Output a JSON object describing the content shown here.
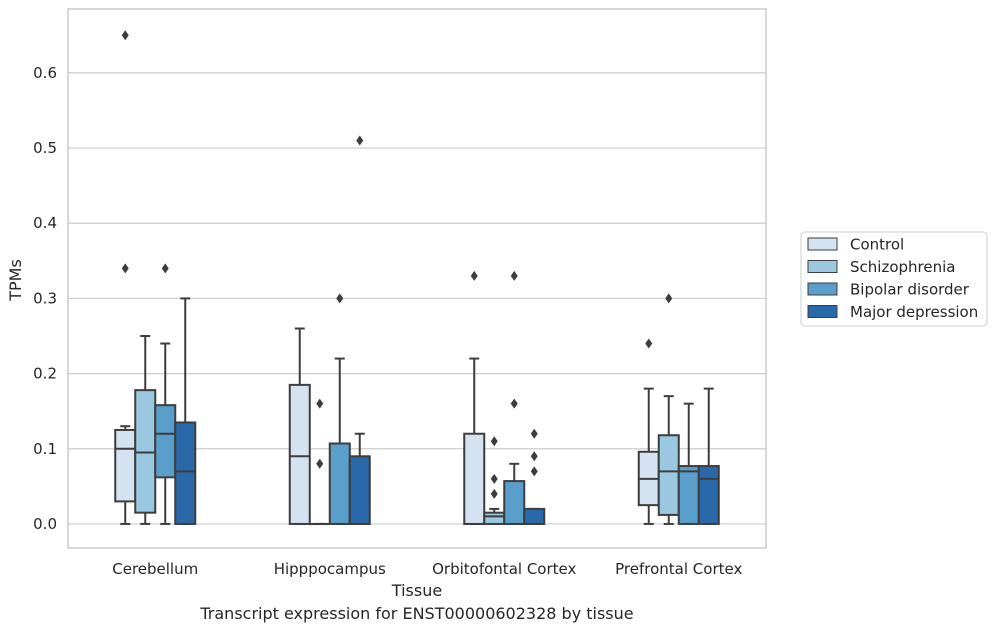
{
  "caption": "Transcript expression for ENST00000602328 by tissue",
  "chart_data": {
    "type": "box",
    "xlabel": "Tissue",
    "ylabel": "TPMs",
    "ylim": [
      -0.032,
      0.685
    ],
    "yticks": [
      0.0,
      0.1,
      0.2,
      0.3,
      0.4,
      0.5,
      0.6
    ],
    "ytick_labels": [
      "0.0",
      "0.1",
      "0.2",
      "0.3",
      "0.4",
      "0.5",
      "0.6"
    ],
    "grid": "horizontal",
    "legend_position": "right",
    "categories": [
      "Cerebellum",
      "Hipppocampus",
      "Orbitofontal Cortex",
      "Prefrontal Cortex"
    ],
    "series": [
      {
        "name": "Control",
        "color": "#d3e3f1",
        "boxes": [
          {
            "whislo": 0.0,
            "q1": 0.03,
            "med": 0.1,
            "q3": 0.125,
            "whishi": 0.13,
            "fliers": [
              0.34,
              0.65
            ]
          },
          {
            "whislo": 0.0,
            "q1": 0.0,
            "med": 0.09,
            "q3": 0.185,
            "whishi": 0.26,
            "fliers": []
          },
          {
            "whislo": 0.0,
            "q1": 0.0,
            "med": 0.0,
            "q3": 0.12,
            "whishi": 0.22,
            "fliers": [
              0.33
            ]
          },
          {
            "whislo": 0.0,
            "q1": 0.025,
            "med": 0.06,
            "q3": 0.096,
            "whishi": 0.18,
            "fliers": [
              0.24
            ]
          }
        ]
      },
      {
        "name": "Schizophrenia",
        "color": "#9ac8e0",
        "boxes": [
          {
            "whislo": 0.0,
            "q1": 0.015,
            "med": 0.095,
            "q3": 0.178,
            "whishi": 0.25,
            "fliers": []
          },
          {
            "whislo": 0.0,
            "q1": 0.0,
            "med": 0.0,
            "q3": 0.0,
            "whishi": 0.0,
            "fliers": [
              0.08,
              0.16
            ]
          },
          {
            "whislo": 0.0,
            "q1": 0.0,
            "med": 0.01,
            "q3": 0.015,
            "whishi": 0.02,
            "fliers": [
              0.04,
              0.06,
              0.11
            ]
          },
          {
            "whislo": 0.0,
            "q1": 0.012,
            "med": 0.07,
            "q3": 0.118,
            "whishi": 0.17,
            "fliers": [
              0.3
            ]
          }
        ]
      },
      {
        "name": "Bipolar disorder",
        "color": "#5a9fcb",
        "boxes": [
          {
            "whislo": 0.0,
            "q1": 0.062,
            "med": 0.12,
            "q3": 0.158,
            "whishi": 0.24,
            "fliers": [
              0.34
            ]
          },
          {
            "whislo": 0.0,
            "q1": 0.0,
            "med": 0.0,
            "q3": 0.107,
            "whishi": 0.22,
            "fliers": [
              0.3
            ]
          },
          {
            "whislo": 0.0,
            "q1": 0.0,
            "med": 0.0,
            "q3": 0.057,
            "whishi": 0.08,
            "fliers": [
              0.16,
              0.33
            ]
          },
          {
            "whislo": 0.0,
            "q1": 0.0,
            "med": 0.07,
            "q3": 0.077,
            "whishi": 0.16,
            "fliers": []
          }
        ]
      },
      {
        "name": "Major depression",
        "color": "#2a69a9",
        "boxes": [
          {
            "whislo": 0.0,
            "q1": 0.0,
            "med": 0.07,
            "q3": 0.135,
            "whishi": 0.3,
            "fliers": []
          },
          {
            "whislo": 0.0,
            "q1": 0.0,
            "med": 0.0,
            "q3": 0.09,
            "whishi": 0.12,
            "fliers": [
              0.51
            ]
          },
          {
            "whislo": 0.0,
            "q1": 0.0,
            "med": 0.0,
            "q3": 0.02,
            "whishi": 0.02,
            "fliers": [
              0.07,
              0.09,
              0.12
            ]
          },
          {
            "whislo": 0.0,
            "q1": 0.0,
            "med": 0.06,
            "q3": 0.077,
            "whishi": 0.18,
            "fliers": []
          }
        ]
      }
    ]
  }
}
